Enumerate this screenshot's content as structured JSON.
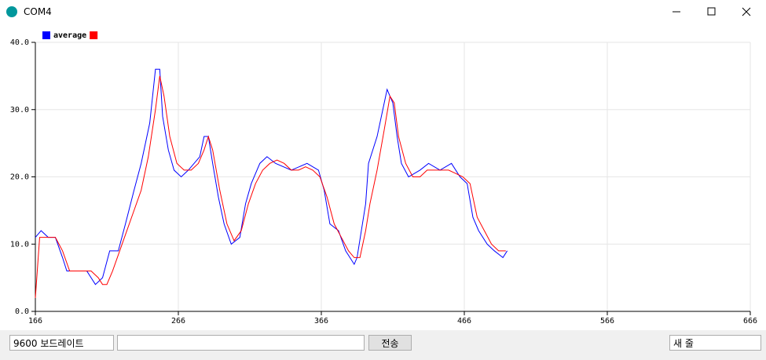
{
  "window": {
    "title": "COM4"
  },
  "controls": {
    "baud": "9600 보드레이트",
    "send": "전송",
    "line_ending": "새 줄"
  },
  "chart_data": {
    "type": "line",
    "xlim": [
      166,
      666
    ],
    "xticks": [
      166,
      266,
      366,
      466,
      566,
      666
    ],
    "ylim": [
      0,
      40
    ],
    "yticks": [
      {
        "value": 0,
        "label": "0.0"
      },
      {
        "value": 10,
        "label": "10.0"
      },
      {
        "value": 20,
        "label": "20.0"
      },
      {
        "value": 30,
        "label": "30.0"
      },
      {
        "value": 40,
        "label": "40.0"
      }
    ],
    "grid": true,
    "series": [
      {
        "name": "average",
        "color": "#0000ff",
        "x": [
          166,
          170,
          175,
          180,
          185,
          188,
          195,
          202,
          205,
          208,
          213,
          218,
          224,
          229,
          235,
          240,
          246,
          250,
          253,
          255,
          259,
          263,
          268,
          273,
          281,
          284,
          287,
          290,
          294,
          298,
          303,
          309,
          313,
          317,
          323,
          328,
          334,
          345,
          356,
          364,
          368,
          372,
          378,
          383,
          389,
          391,
          394,
          397,
          399,
          405,
          409,
          412,
          416,
          419,
          422,
          427,
          435,
          441,
          449,
          457,
          463,
          468,
          472,
          476,
          482,
          487,
          493,
          496
        ],
        "values": [
          11,
          12,
          11,
          11,
          8,
          6,
          6,
          6,
          5,
          4,
          5,
          9,
          9,
          13,
          18,
          22,
          28,
          36,
          36,
          29,
          24,
          21,
          20,
          21,
          23,
          26,
          26,
          22,
          17,
          13,
          10,
          11,
          16,
          19,
          22,
          23,
          22,
          21,
          22,
          21,
          18,
          13,
          12,
          9,
          7,
          8,
          12,
          16,
          22,
          26,
          30,
          33,
          31,
          26,
          22,
          20,
          21,
          22,
          21,
          22,
          20,
          19,
          14,
          12,
          10,
          9,
          8,
          9
        ]
      },
      {
        "color": "#ff0000",
        "x": [
          166,
          169,
          175,
          180,
          185,
          190,
          195,
          200,
          205,
          210,
          213,
          216,
          220,
          225,
          230,
          235,
          240,
          245,
          250,
          253,
          256,
          260,
          265,
          270,
          275,
          280,
          284,
          287,
          290,
          295,
          300,
          305,
          310,
          315,
          320,
          325,
          330,
          335,
          340,
          345,
          350,
          355,
          360,
          365,
          370,
          375,
          380,
          385,
          389,
          393,
          397,
          400,
          405,
          410,
          414,
          417,
          420,
          425,
          430,
          435,
          440,
          445,
          450,
          455,
          460,
          465,
          470,
          475,
          480,
          485,
          490,
          495
        ],
        "values": [
          2,
          11,
          11,
          11,
          9,
          6,
          6,
          6,
          6,
          5,
          4,
          4,
          6,
          9,
          12,
          15,
          18,
          23,
          30,
          35,
          32,
          26,
          22,
          21,
          21,
          22,
          24,
          26,
          24,
          18,
          13,
          10.5,
          12,
          16,
          19,
          21,
          22,
          22.5,
          22,
          21,
          21,
          21.5,
          21,
          20,
          17,
          13,
          11,
          9,
          8,
          8,
          12,
          16,
          21,
          27,
          32,
          31,
          26,
          22,
          20,
          20,
          21,
          21,
          21,
          21,
          20.5,
          20,
          19,
          14,
          12,
          10,
          9,
          9
        ]
      }
    ]
  }
}
